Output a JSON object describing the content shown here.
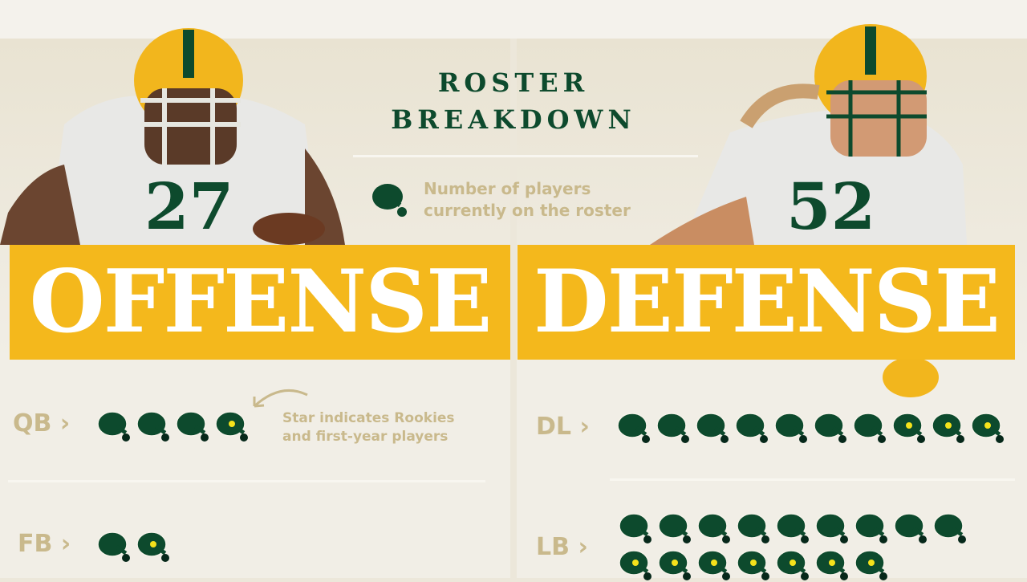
{
  "header": {
    "title_line1": "ROSTER",
    "title_line2": "BREAKDOWN"
  },
  "legend": {
    "icon": "helmet-icon",
    "line1": "Number of players",
    "line2": "currently on the roster"
  },
  "note": {
    "line1": "Star indicates Rookies",
    "line2": "and first-year players"
  },
  "colors": {
    "green": "#0d4a2d",
    "gold": "#f4b81c",
    "tan": "#c9b98c",
    "rookie_star": "#f5e21b"
  },
  "offense": {
    "banner": "OFFENSE",
    "player_jersey": "27",
    "positions": [
      {
        "label": "QB",
        "chevron": "›",
        "total": 4,
        "rookies": 1
      },
      {
        "label": "FB",
        "chevron": "›",
        "total": 2,
        "rookies": 1
      }
    ]
  },
  "defense": {
    "banner": "DEFENSE",
    "player_jersey": "52",
    "positions": [
      {
        "label": "DL",
        "chevron": "›",
        "total": 10,
        "rookies": 3
      },
      {
        "label": "LB",
        "chevron": "›",
        "total": 16,
        "rookies": 7
      }
    ]
  }
}
